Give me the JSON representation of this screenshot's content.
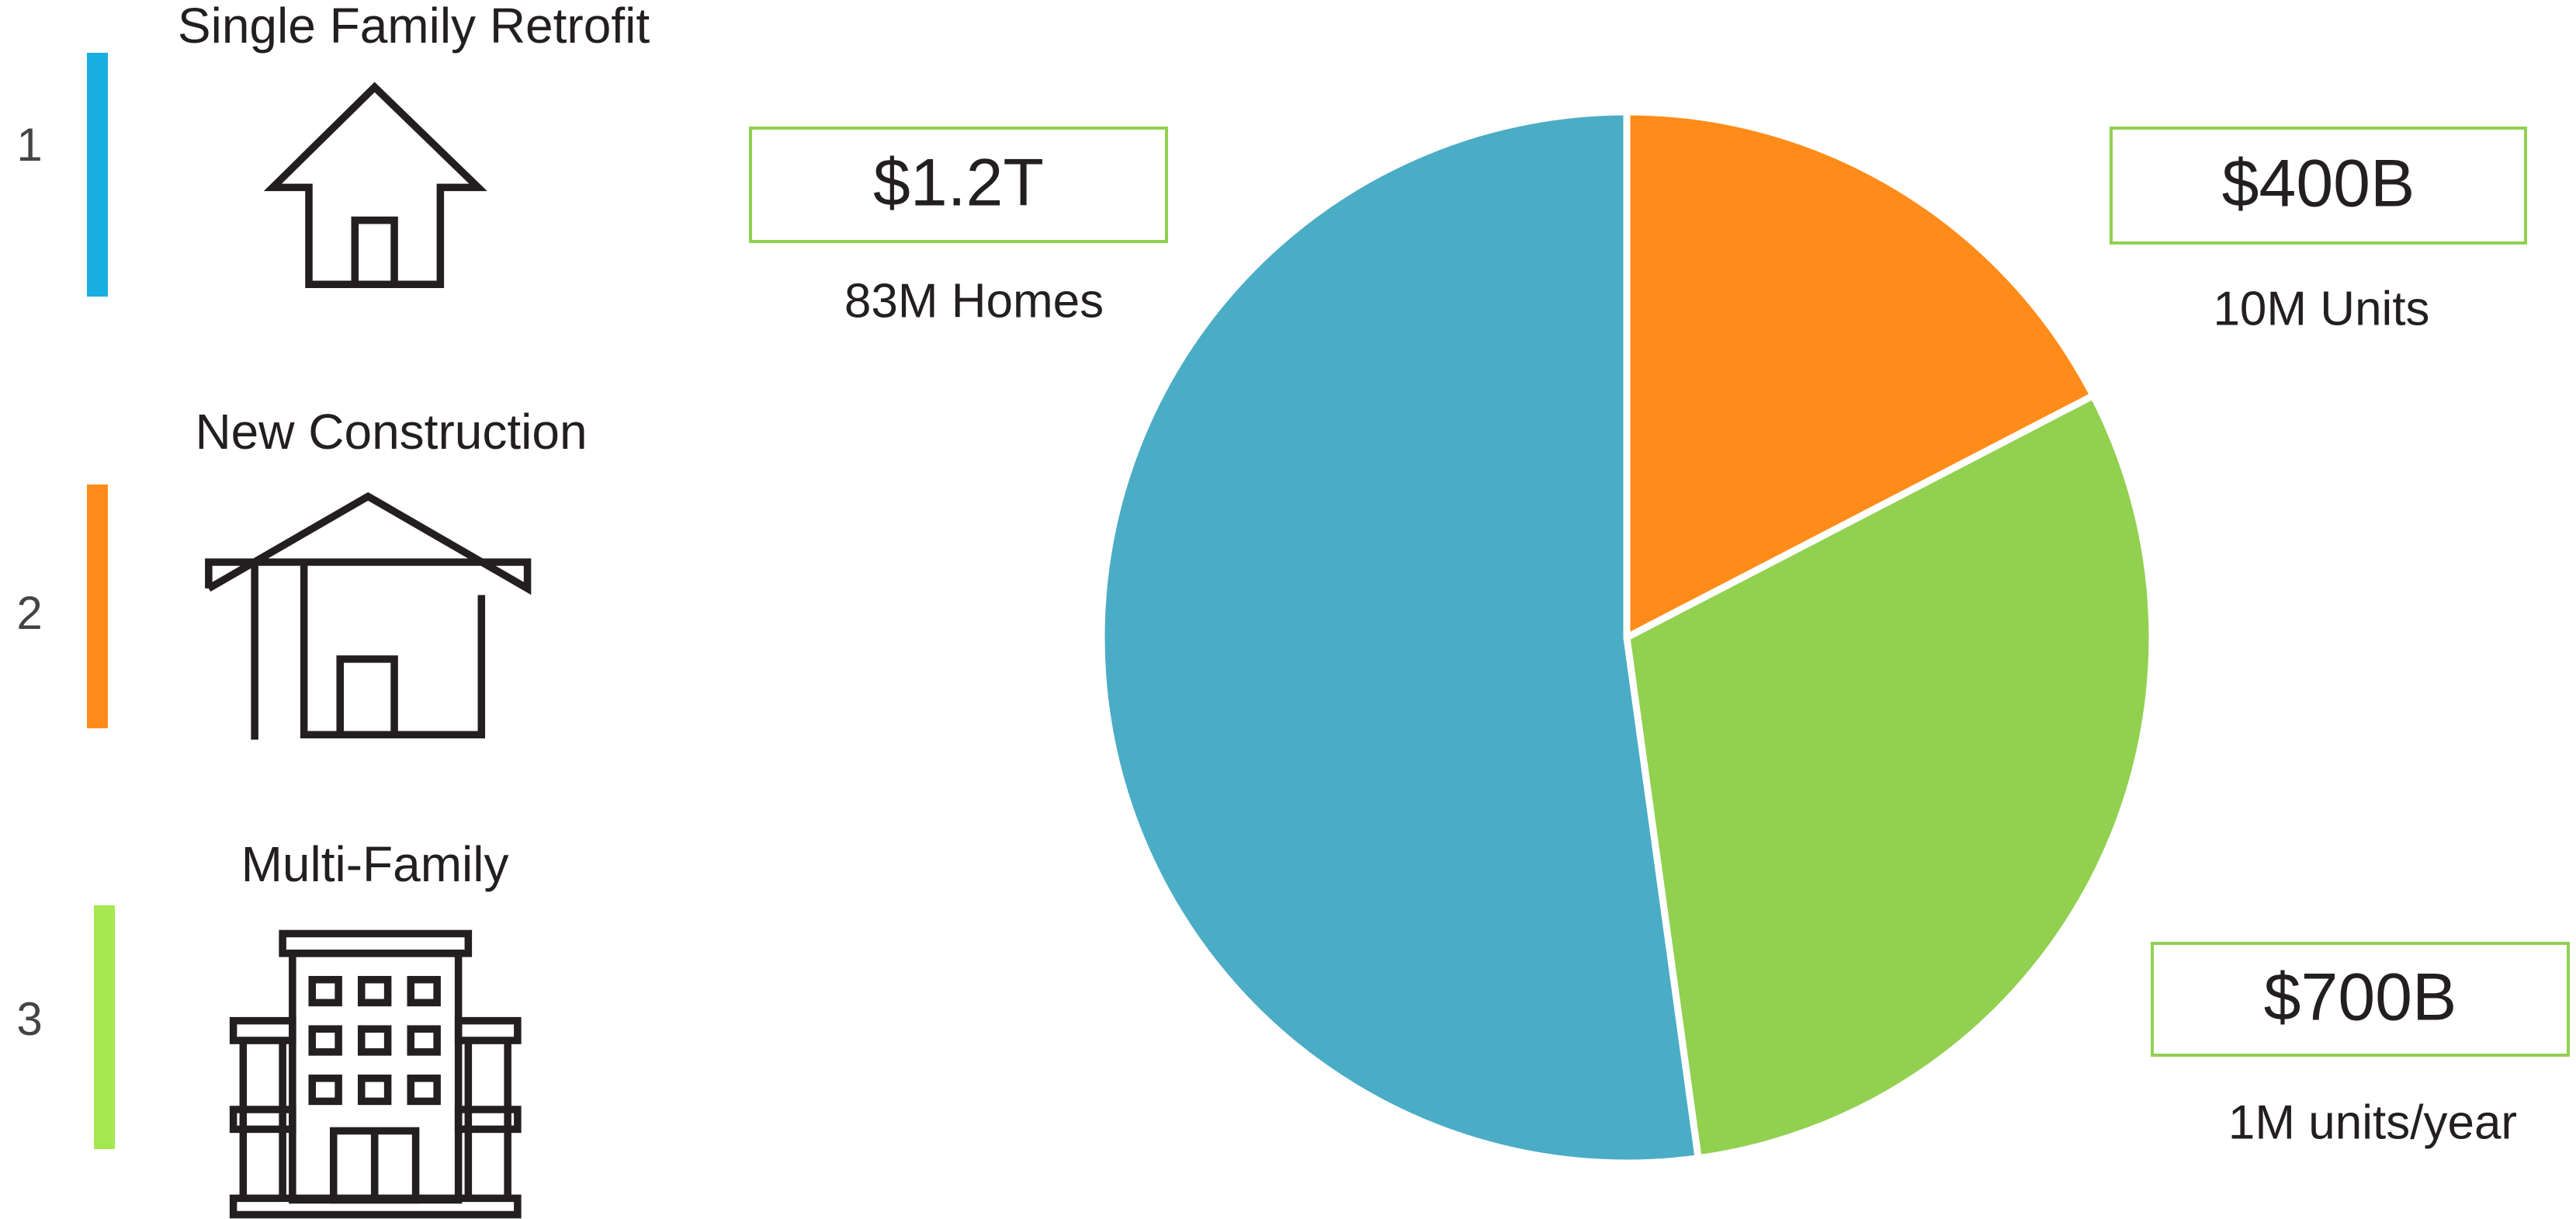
{
  "chart_data": {
    "type": "pie",
    "categories": [
      "Single Family Retrofit",
      "New Construction",
      "Multi-Family"
    ],
    "legend_numbers": [
      "1",
      "2",
      "3"
    ],
    "values": [
      1200000000000,
      400000000000,
      700000000000
    ],
    "value_labels": [
      "$1.2T",
      "$400B",
      "$700B"
    ],
    "annotations": [
      "83M Homes",
      "10M Units",
      "1M units/year"
    ],
    "colors": [
      "#4bacc6",
      "#ff8c1a",
      "#92d050"
    ],
    "legend_colors": [
      "#1aade0",
      "#ff8c1a",
      "#a6e850"
    ]
  }
}
